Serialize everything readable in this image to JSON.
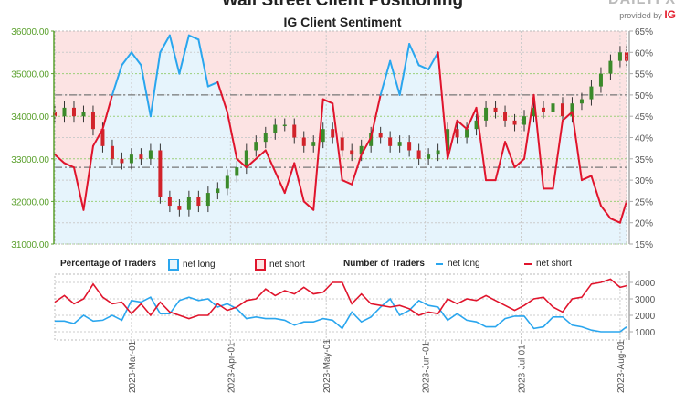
{
  "header": {
    "title": "Wall Street Client Positioning",
    "subtitle": "IG Client Sentiment",
    "logo_text": "DAILYFX",
    "provided_by": "provided by",
    "provider": "IG"
  },
  "legend": {
    "pct_heading": "Percentage of Traders",
    "pct_long": "net long",
    "pct_short": "net short",
    "num_heading": "Number of Traders",
    "num_long": "net long",
    "num_short": "net short"
  },
  "colors": {
    "long": "#2aa6ee",
    "short": "#e0142c",
    "long_fill": "#e6f4fc",
    "short_fill": "#fce3e3",
    "up": "#3b8a2a",
    "down": "#d2232a",
    "axis_left": "#5aa02c"
  },
  "chart_data": [
    {
      "type": "candlestick+line",
      "title": "IG Client Sentiment",
      "y_left": {
        "ylim": [
          31000,
          36000
        ],
        "ticks": [
          "36000.00",
          "35000.00",
          "34000.00",
          "33000.00",
          "32000.00",
          "31000.00"
        ]
      },
      "y_right": {
        "ylim": [
          15,
          65
        ],
        "ticks": [
          "65%",
          "60%",
          "55%",
          "50%",
          "45%",
          "40%",
          "35%",
          "30%",
          "25%",
          "20%",
          "15%"
        ]
      },
      "reference_lines_pct": [
        50,
        33
      ],
      "dates": [
        "2023-02-05",
        "2023-02-08",
        "2023-02-11",
        "2023-02-14",
        "2023-02-17",
        "2023-02-20",
        "2023-02-23",
        "2023-02-26",
        "2023-03-01",
        "2023-03-04",
        "2023-03-07",
        "2023-03-10",
        "2023-03-13",
        "2023-03-16",
        "2023-03-19",
        "2023-03-22",
        "2023-03-25",
        "2023-03-28",
        "2023-03-31",
        "2023-04-03",
        "2023-04-06",
        "2023-04-09",
        "2023-04-12",
        "2023-04-15",
        "2023-04-18",
        "2023-04-21",
        "2023-04-24",
        "2023-04-27",
        "2023-04-30",
        "2023-05-03",
        "2023-05-06",
        "2023-05-09",
        "2023-05-12",
        "2023-05-15",
        "2023-05-18",
        "2023-05-21",
        "2023-05-24",
        "2023-05-27",
        "2023-05-30",
        "2023-06-02",
        "2023-06-05",
        "2023-06-08",
        "2023-06-11",
        "2023-06-14",
        "2023-06-17",
        "2023-06-20",
        "2023-06-23",
        "2023-06-26",
        "2023-06-29",
        "2023-07-02",
        "2023-07-05",
        "2023-07-08",
        "2023-07-11",
        "2023-07-14",
        "2023-07-17",
        "2023-07-20",
        "2023-07-23",
        "2023-07-26",
        "2023-07-29",
        "2023-08-01",
        "2023-08-04"
      ],
      "price_close": [
        34000,
        34200,
        34000,
        34100,
        33700,
        33300,
        33000,
        32900,
        33100,
        33000,
        33200,
        32100,
        31900,
        31800,
        32100,
        31900,
        32200,
        32300,
        32600,
        32800,
        33200,
        33400,
        33600,
        33800,
        33800,
        33500,
        33300,
        33400,
        33700,
        33500,
        33200,
        33100,
        33300,
        33600,
        33500,
        33300,
        33400,
        33200,
        33000,
        33100,
        33200,
        33700,
        33500,
        33700,
        33900,
        34200,
        34100,
        33900,
        33800,
        34000,
        34200,
        34100,
        34300,
        34000,
        34300,
        34400,
        34700,
        35000,
        35300,
        35500,
        35300
      ],
      "net_long_pct": [
        36,
        34,
        33,
        23,
        38,
        42,
        50,
        57,
        60,
        57,
        45,
        60,
        64,
        55,
        64,
        63,
        52,
        53,
        46,
        35,
        33,
        35,
        37,
        32,
        27,
        34,
        25,
        23,
        49,
        48,
        30,
        29,
        36,
        40,
        50,
        58,
        50,
        62,
        57,
        56,
        60,
        35,
        44,
        42,
        47,
        30,
        30,
        39,
        33,
        35,
        50,
        28,
        28,
        44,
        46,
        30,
        31,
        24,
        21,
        20,
        25
      ]
    },
    {
      "type": "line",
      "title": "Number of Traders",
      "ylim": [
        500,
        4500
      ],
      "ticks": [
        "4000",
        "3000",
        "2000",
        "1000"
      ],
      "x_ticks": [
        "2023-Mar-01",
        "2023-Apr-01",
        "2023-May-01",
        "2023-Jun-01",
        "2023-Jul-01",
        "2023-Aug-01"
      ],
      "series": [
        {
          "name": "net long",
          "values": [
            1650,
            1650,
            1500,
            2000,
            1650,
            1700,
            2000,
            1700,
            2900,
            2800,
            3100,
            2100,
            2100,
            2900,
            3100,
            2900,
            3000,
            2500,
            2700,
            2400,
            1800,
            1900,
            1800,
            1800,
            1700,
            1400,
            1600,
            1600,
            1800,
            1700,
            1200,
            2200,
            1600,
            1900,
            2500,
            3000,
            2000,
            2300,
            2900,
            2600,
            2500,
            1700,
            2100,
            1700,
            1600,
            1300,
            1300,
            1800,
            1950,
            1950,
            1200,
            1300,
            1900,
            1900,
            1400,
            1300,
            1100,
            1000,
            1000,
            1000,
            1300
          ]
        },
        {
          "name": "net short",
          "values": [
            2800,
            3200,
            2700,
            3000,
            3900,
            3100,
            2700,
            2800,
            2100,
            2700,
            2000,
            2800,
            2200,
            2000,
            1800,
            2000,
            2000,
            2700,
            2300,
            2500,
            2900,
            3000,
            3600,
            3200,
            3500,
            3300,
            3700,
            3300,
            3400,
            4000,
            4000,
            2700,
            3300,
            2700,
            2600,
            2500,
            2600,
            2400,
            2000,
            2200,
            2100,
            3000,
            2700,
            3000,
            2900,
            3200,
            2900,
            2600,
            2300,
            2600,
            3000,
            3100,
            2500,
            2200,
            3000,
            3100,
            3900,
            4000,
            4200,
            3700,
            3800
          ]
        }
      ]
    }
  ]
}
